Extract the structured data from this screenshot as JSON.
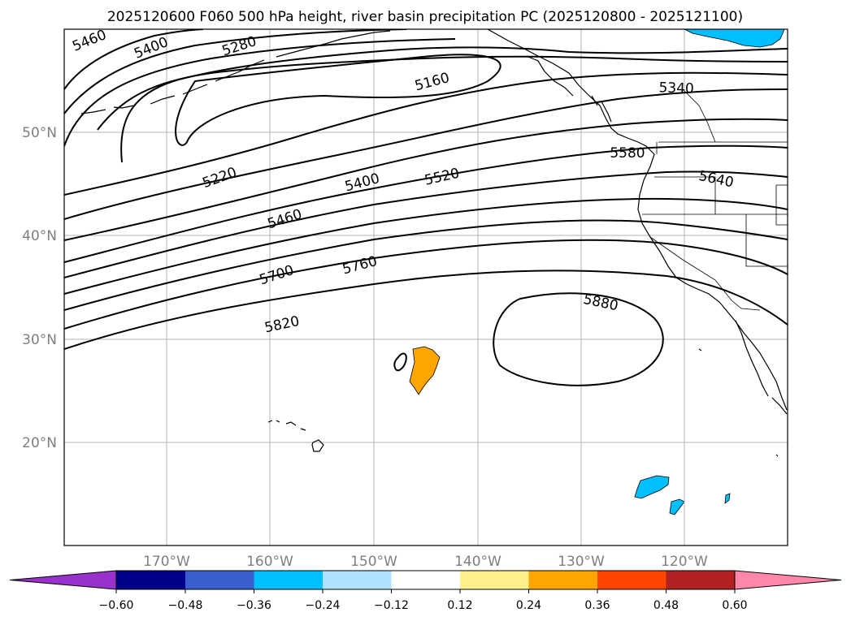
{
  "title": "2025120600 F060 500 hPa height, river basin precipitation PC (2025120800 - 2025121100)",
  "lat_labels": [
    "50°N",
    "40°N",
    "30°N",
    "20°N"
  ],
  "lon_labels": [
    "170°W",
    "160°W",
    "150°W",
    "140°W",
    "130°W",
    "120°W"
  ],
  "contour_labels": [
    "5460",
    "5400",
    "5280",
    "5160",
    "5340",
    "5220",
    "5400",
    "5520",
    "5580",
    "5640",
    "5460",
    "5700",
    "5760",
    "5820",
    "5880"
  ],
  "colorbar": {
    "ticks": [
      "−0.60",
      "−0.48",
      "−0.36",
      "−0.24",
      "−0.12",
      "0.12",
      "0.24",
      "0.36",
      "0.48",
      "0.60"
    ],
    "colors": [
      "#9932cc",
      "#00008b",
      "#3a5fcd",
      "#00bfff",
      "#b0e2ff",
      "#ffffff",
      "#fff08c",
      "#ffa500",
      "#ff4500",
      "#b22222",
      "#ff88aa"
    ]
  },
  "precip_patches": [
    {
      "name": "hawaii-offshore-patch",
      "color": "#ffa500"
    },
    {
      "name": "canada-patch",
      "color": "#00bfff"
    },
    {
      "name": "mexico-patch-1",
      "color": "#00bfff"
    },
    {
      "name": "mexico-patch-2",
      "color": "#00bfff"
    }
  ]
}
